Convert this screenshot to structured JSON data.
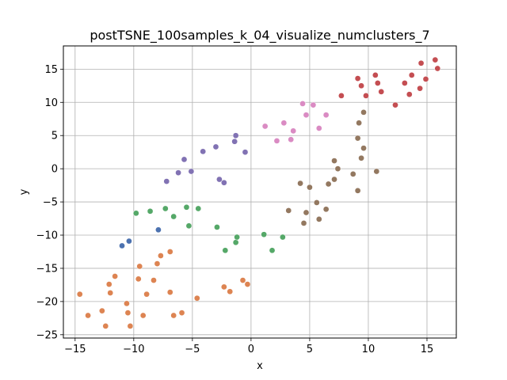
{
  "chart_data": {
    "type": "scatter",
    "title": "postTSNE_100samples_k_04_visualize_numclusters_7",
    "xlabel": "x",
    "ylabel": "y",
    "xlim": [
      -16.0,
      17.5
    ],
    "ylim": [
      -25.5,
      18.5
    ],
    "xticks": [
      -15,
      -10,
      -5,
      0,
      5,
      10,
      15
    ],
    "yticks": [
      -25,
      -20,
      -15,
      -10,
      -5,
      0,
      5,
      10,
      15
    ],
    "grid": true,
    "series": [
      {
        "cluster": 0,
        "color": "#4c72b0",
        "points": [
          [
            -11.0,
            -11.6
          ],
          [
            -10.4,
            -10.9
          ],
          [
            -7.9,
            -9.2
          ]
        ]
      },
      {
        "cluster": 1,
        "color": "#dd8452",
        "points": [
          [
            -14.6,
            -18.9
          ],
          [
            -13.9,
            -22.1
          ],
          [
            -12.7,
            -21.4
          ],
          [
            -12.4,
            -23.7
          ],
          [
            -12.1,
            -17.4
          ],
          [
            -12.0,
            -18.7
          ],
          [
            -11.6,
            -16.2
          ],
          [
            -10.6,
            -20.3
          ],
          [
            -10.5,
            -21.7
          ],
          [
            -10.3,
            -23.7
          ],
          [
            -9.6,
            -16.6
          ],
          [
            -9.5,
            -14.7
          ],
          [
            -9.2,
            -22.1
          ],
          [
            -8.9,
            -18.9
          ],
          [
            -8.3,
            -16.8
          ],
          [
            -8.0,
            -14.3
          ],
          [
            -7.7,
            -13.1
          ],
          [
            -6.9,
            -12.5
          ],
          [
            -6.9,
            -18.6
          ],
          [
            -6.6,
            -22.1
          ],
          [
            -5.9,
            -21.7
          ],
          [
            -4.6,
            -19.5
          ],
          [
            -2.3,
            -17.8
          ],
          [
            -1.8,
            -18.5
          ],
          [
            -0.7,
            -16.8
          ],
          [
            -0.3,
            -17.4
          ]
        ]
      },
      {
        "cluster": 2,
        "color": "#55a868",
        "points": [
          [
            -9.8,
            -6.7
          ],
          [
            -8.6,
            -6.4
          ],
          [
            -7.3,
            -6.0
          ],
          [
            -6.6,
            -7.2
          ],
          [
            -5.5,
            -5.8
          ],
          [
            -5.3,
            -8.6
          ],
          [
            -4.5,
            -6.0
          ],
          [
            -2.9,
            -8.8
          ],
          [
            -2.2,
            -12.3
          ],
          [
            -1.3,
            -11.1
          ],
          [
            -1.2,
            -10.3
          ],
          [
            1.1,
            -9.9
          ],
          [
            1.8,
            -12.3
          ],
          [
            2.7,
            -10.3
          ]
        ]
      },
      {
        "cluster": 3,
        "color": "#c44e52",
        "points": [
          [
            7.7,
            11.0
          ],
          [
            9.1,
            13.6
          ],
          [
            9.4,
            12.5
          ],
          [
            9.8,
            11.0
          ],
          [
            10.6,
            14.1
          ],
          [
            10.8,
            12.9
          ],
          [
            11.1,
            11.6
          ],
          [
            12.3,
            9.6
          ],
          [
            13.1,
            12.9
          ],
          [
            13.5,
            11.2
          ],
          [
            13.7,
            14.1
          ],
          [
            14.4,
            12.1
          ],
          [
            14.5,
            15.9
          ],
          [
            14.9,
            13.5
          ],
          [
            15.7,
            16.4
          ],
          [
            15.9,
            15.1
          ]
        ]
      },
      {
        "cluster": 4,
        "color": "#8172b3",
        "points": [
          [
            -7.2,
            -1.9
          ],
          [
            -6.2,
            -0.6
          ],
          [
            -5.7,
            1.4
          ],
          [
            -5.1,
            -0.4
          ],
          [
            -4.1,
            2.6
          ],
          [
            -3.0,
            3.3
          ],
          [
            -2.7,
            -1.6
          ],
          [
            -2.3,
            -2.1
          ],
          [
            -1.4,
            4.1
          ],
          [
            -1.3,
            5.0
          ],
          [
            -0.5,
            2.5
          ]
        ]
      },
      {
        "cluster": 5,
        "color": "#937860",
        "points": [
          [
            3.2,
            -6.3
          ],
          [
            4.2,
            -2.2
          ],
          [
            4.5,
            -8.2
          ],
          [
            4.7,
            -6.6
          ],
          [
            5.0,
            -2.8
          ],
          [
            5.6,
            -5.1
          ],
          [
            5.8,
            -7.6
          ],
          [
            6.4,
            -6.1
          ],
          [
            6.6,
            -2.3
          ],
          [
            7.1,
            1.2
          ],
          [
            7.1,
            -1.6
          ],
          [
            7.4,
            0.0
          ],
          [
            8.7,
            -0.8
          ],
          [
            9.1,
            4.6
          ],
          [
            9.2,
            6.9
          ],
          [
            9.1,
            -3.3
          ],
          [
            9.4,
            1.6
          ],
          [
            9.6,
            8.5
          ],
          [
            9.6,
            3.1
          ],
          [
            10.7,
            -0.4
          ]
        ]
      },
      {
        "cluster": 6,
        "color": "#da8bc3",
        "points": [
          [
            1.2,
            6.4
          ],
          [
            2.2,
            4.2
          ],
          [
            2.8,
            6.9
          ],
          [
            3.4,
            4.4
          ],
          [
            3.6,
            5.7
          ],
          [
            4.4,
            9.8
          ],
          [
            4.7,
            8.1
          ],
          [
            5.3,
            9.6
          ],
          [
            5.8,
            6.1
          ],
          [
            6.4,
            8.1
          ]
        ]
      }
    ]
  }
}
